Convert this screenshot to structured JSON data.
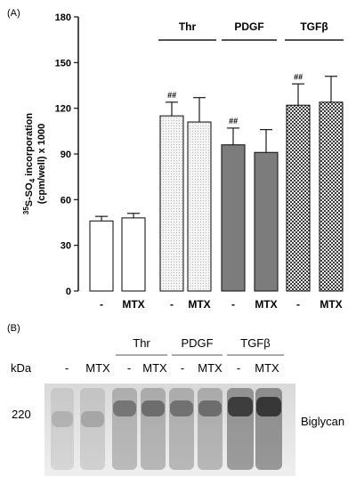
{
  "panel_a": {
    "label": "(A)",
    "ylabel_line1_sup": "35",
    "ylabel_line1_rest": "S-SO",
    "ylabel_line1_sub": "4",
    "ylabel_line1_end": " incorporation",
    "ylabel_line2": "(cpm/well) x 1000",
    "ticks": [
      "0",
      "30",
      "60",
      "90",
      "120",
      "150",
      "180"
    ],
    "groups": [
      "Thr",
      "PDGF",
      "TGFβ"
    ],
    "condition_labels": [
      "-",
      "MTX",
      "-",
      "MTX",
      "-",
      "MTX",
      "-",
      "MTX"
    ],
    "significance_label": "##"
  },
  "chart_data": {
    "type": "bar",
    "categories": [
      "-",
      "MTX",
      "-",
      "MTX",
      "-",
      "MTX",
      "-",
      "MTX"
    ],
    "groups": [
      "",
      "",
      "Thr",
      "Thr",
      "PDGF",
      "PDGF",
      "TGFβ",
      "TGFβ"
    ],
    "values": [
      46,
      48,
      115,
      111,
      96,
      91,
      122,
      124
    ],
    "errors": [
      3,
      3,
      9,
      16,
      11,
      15,
      14,
      17
    ],
    "significance": [
      "",
      "",
      "##",
      "",
      "##",
      "",
      "##",
      ""
    ],
    "fills": [
      "white",
      "white",
      "dotted",
      "dotted",
      "gray",
      "gray",
      "checker",
      "checker"
    ],
    "ylim": [
      0,
      180
    ],
    "yticks": [
      0,
      30,
      60,
      90,
      120,
      150,
      180
    ],
    "grid": false,
    "colors": {
      "white": "#ffffff",
      "dotted": "#e9e9e9",
      "gray": "#7c7c7c",
      "checker": "#595959",
      "axis": "#111111"
    }
  },
  "panel_b": {
    "label": "(B)",
    "kda_label": "kDa",
    "marker": "220",
    "band_label": "Biglycan",
    "groups": [
      "Thr",
      "PDGF",
      "TGFβ"
    ],
    "lane_labels": [
      "-",
      "MTX",
      "-",
      "MTX",
      "-",
      "MTX",
      "-",
      "MTX"
    ]
  }
}
